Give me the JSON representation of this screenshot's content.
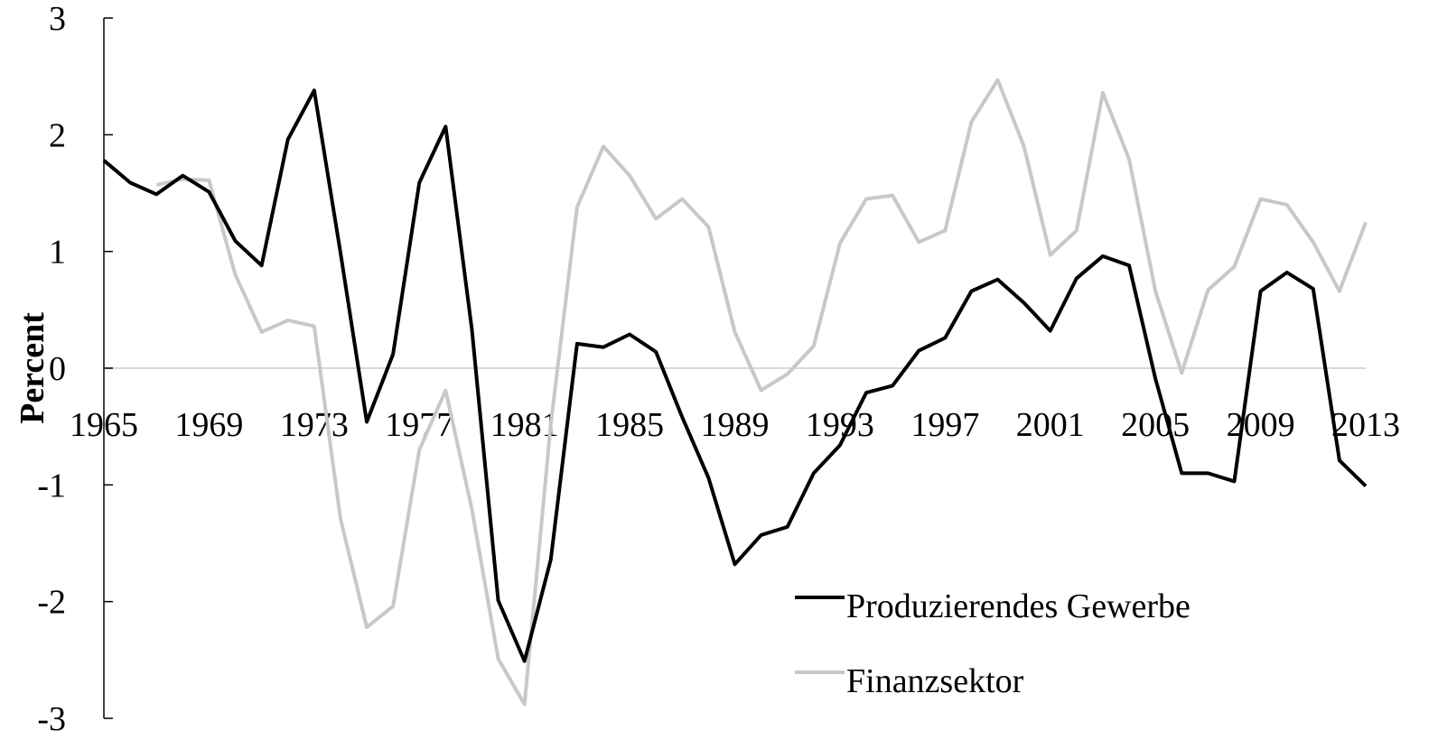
{
  "chart_data": {
    "type": "line",
    "y_label": "Percent",
    "x": [
      1965,
      1966,
      1967,
      1968,
      1969,
      1970,
      1971,
      1972,
      1973,
      1974,
      1975,
      1976,
      1977,
      1978,
      1979,
      1980,
      1981,
      1982,
      1983,
      1984,
      1985,
      1986,
      1987,
      1988,
      1989,
      1990,
      1991,
      1992,
      1993,
      1994,
      1995,
      1996,
      1997,
      1998,
      1999,
      2000,
      2001,
      2002,
      2003,
      2004,
      2005,
      2006,
      2007,
      2008,
      2009,
      2010,
      2011,
      2012,
      2013
    ],
    "xlim": [
      1965,
      2013
    ],
    "xticks": [
      1965,
      1969,
      1973,
      1977,
      1981,
      1985,
      1989,
      1993,
      1997,
      2001,
      2005,
      2009,
      2013
    ],
    "ylim": [
      -3,
      3
    ],
    "yticks": [
      -3,
      -2,
      -1,
      0,
      1,
      2,
      3
    ],
    "legend": "lower right",
    "series": [
      {
        "name": "Produzierendes Gewerbe",
        "color": "#000000",
        "values": [
          1.78,
          1.59,
          1.49,
          1.65,
          1.51,
          1.09,
          0.88,
          1.96,
          2.38,
          0.99,
          -0.46,
          0.12,
          1.59,
          2.07,
          0.33,
          -1.99,
          -2.51,
          -1.64,
          0.21,
          0.18,
          0.29,
          0.14,
          -0.42,
          -0.94,
          -1.68,
          -1.43,
          -1.36,
          -0.9,
          -0.66,
          -0.21,
          -0.15,
          0.15,
          0.26,
          0.66,
          0.76,
          0.56,
          0.32,
          0.77,
          0.96,
          0.88,
          -0.09,
          -0.9,
          -0.9,
          -0.97,
          0.66,
          0.82,
          0.68,
          -0.79,
          -1.01
        ]
      },
      {
        "name": "Finanzsektor",
        "color": "#c8c8c8",
        "values": [
          null,
          null,
          1.57,
          1.62,
          1.61,
          0.8,
          0.31,
          0.41,
          0.36,
          -1.29,
          -2.22,
          -2.04,
          -0.7,
          -0.19,
          -1.21,
          -2.49,
          -2.88,
          -0.48,
          1.38,
          1.9,
          1.65,
          1.28,
          1.45,
          1.21,
          0.31,
          -0.19,
          -0.05,
          0.19,
          1.07,
          1.45,
          1.48,
          1.08,
          1.18,
          2.11,
          2.47,
          1.9,
          0.97,
          1.18,
          2.36,
          1.79,
          0.66,
          -0.04,
          0.67,
          0.87,
          1.45,
          1.4,
          1.08,
          0.66,
          1.25
        ]
      }
    ]
  }
}
